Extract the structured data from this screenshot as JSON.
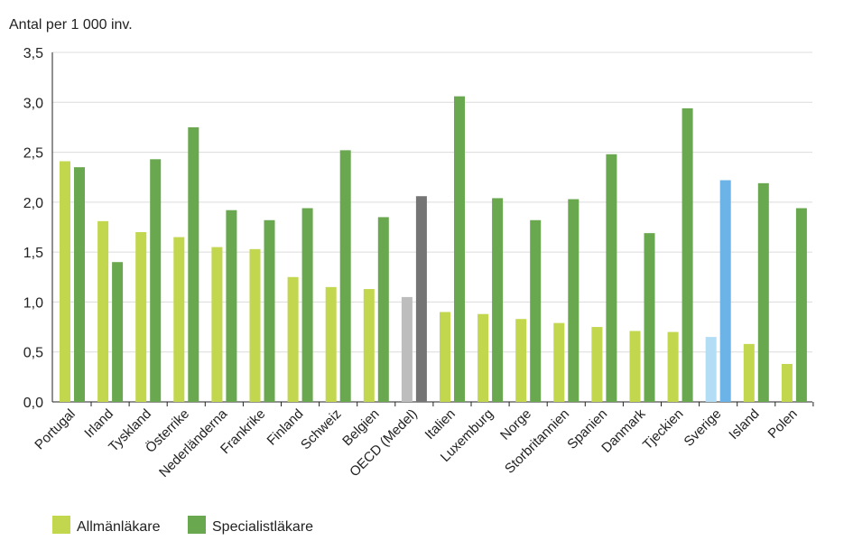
{
  "chart_data": {
    "type": "bar",
    "ylabel": "Antal per 1 000 inv.",
    "ylim": [
      0,
      3.5
    ],
    "yticks": [
      "0,0",
      "0,5",
      "1,0",
      "1,5",
      "2,0",
      "2,5",
      "3,0",
      "3,5"
    ],
    "grid": true,
    "legend_position": "bottom-left",
    "categories": [
      "Portugal",
      "Irland",
      "Tyskland",
      "Österrike",
      "Nederländerna",
      "Frankrike",
      "Finland",
      "Schweiz",
      "Belgien",
      "OECD (Medel)",
      "Italien",
      "Luxemburg",
      "Norge",
      "Storbritannien",
      "Spanien",
      "Danmark",
      "Tjeckien",
      "Sverige",
      "Island",
      "Polen"
    ],
    "series": [
      {
        "name": "Allmänläkare",
        "color": "#c2d64e",
        "values": [
          2.41,
          1.81,
          1.7,
          1.65,
          1.55,
          1.53,
          1.25,
          1.15,
          1.13,
          1.05,
          0.9,
          0.88,
          0.83,
          0.79,
          0.75,
          0.71,
          0.7,
          0.65,
          0.58,
          0.38
        ]
      },
      {
        "name": "Specialistläkare",
        "color": "#6aa84f",
        "values": [
          2.35,
          1.4,
          2.43,
          2.75,
          1.92,
          1.82,
          1.94,
          2.52,
          1.85,
          2.06,
          3.06,
          2.04,
          1.82,
          2.03,
          2.48,
          1.69,
          2.94,
          2.22,
          2.19,
          1.94
        ]
      }
    ],
    "highlight": {
      "OECD (Medel)": {
        "colors": [
          "#bdbdbd",
          "#757575"
        ]
      },
      "Sverige": {
        "colors": [
          "#b3dcf5",
          "#6cb4e8"
        ]
      }
    }
  }
}
